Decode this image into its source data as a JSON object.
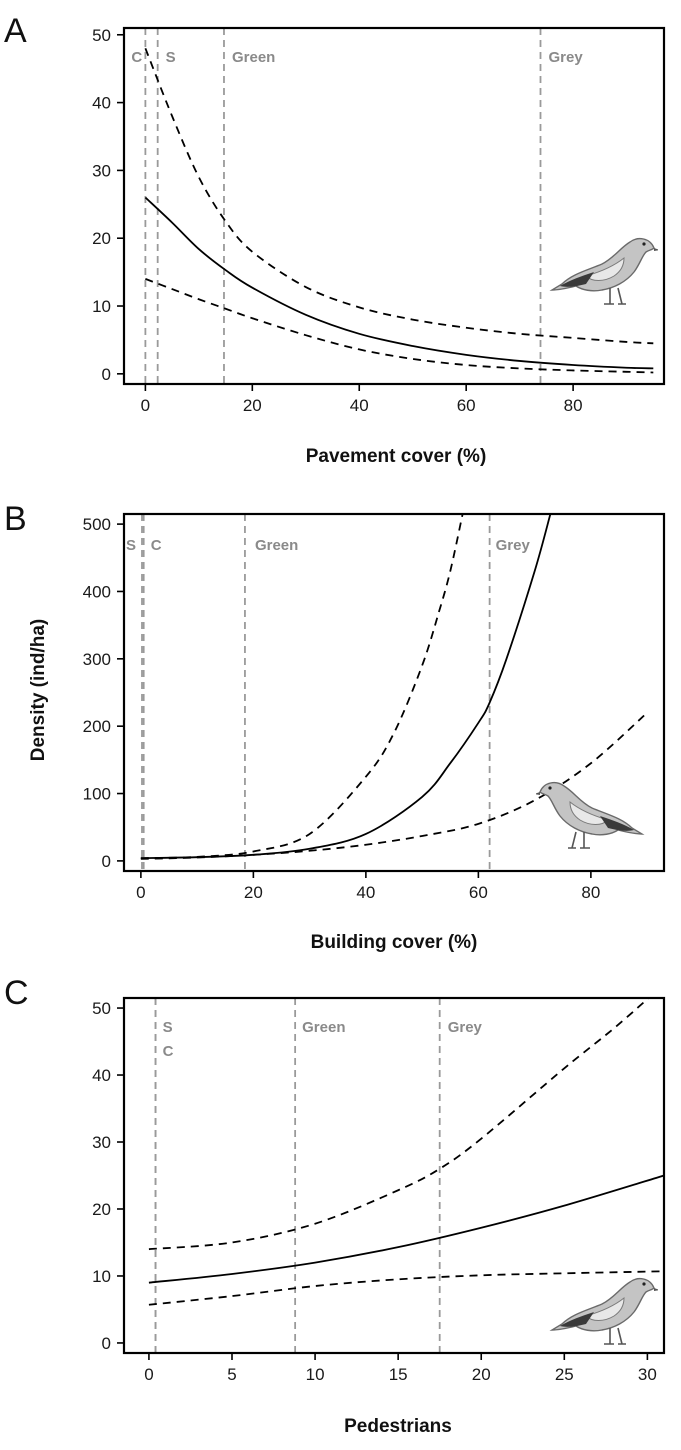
{
  "colors": {
    "curve": "#000000",
    "reference": "#9a9a9a",
    "reference_text": "#8a8a8a",
    "bird_body": "#bdbdbd"
  },
  "icons": [
    "bird-icon"
  ],
  "chart_data": [
    {
      "type": "line",
      "panel": "A",
      "xlabel": "Pavement cover (%)",
      "ylabel": "",
      "xlim": [
        -4,
        97
      ],
      "ylim": [
        -1.5,
        51
      ],
      "xticks": [
        0,
        20,
        40,
        60,
        80
      ],
      "yticks": [
        0,
        10,
        20,
        30,
        40,
        50
      ],
      "series": [
        {
          "style": "solid",
          "x": [
            0,
            5,
            10,
            15,
            20,
            30,
            40,
            50,
            60,
            70,
            80,
            90,
            95
          ],
          "y": [
            26,
            22.3,
            18.4,
            15.3,
            12.7,
            8.7,
            5.9,
            4.1,
            2.8,
            1.9,
            1.3,
            0.9,
            0.8
          ]
        },
        {
          "style": "dashed",
          "x": [
            0,
            5,
            10,
            15,
            20,
            30,
            40,
            50,
            60,
            70,
            80,
            90,
            95
          ],
          "y": [
            48,
            38,
            29,
            22.5,
            18,
            12.8,
            9.8,
            8,
            6.8,
            5.9,
            5.3,
            4.7,
            4.5
          ]
        },
        {
          "style": "dashed",
          "x": [
            0,
            5,
            10,
            15,
            20,
            30,
            40,
            50,
            60,
            70,
            80,
            90,
            95
          ],
          "y": [
            14,
            12.5,
            11,
            9.6,
            8.2,
            5.7,
            3.6,
            2.2,
            1.3,
            0.8,
            0.5,
            0.3,
            0.2
          ]
        }
      ],
      "reference_lines": [
        {
          "x": 0,
          "label": "C"
        },
        {
          "x": 2.3,
          "label": "S"
        },
        {
          "x": 14.7,
          "label": "Green"
        },
        {
          "x": 73.9,
          "label": "Grey"
        }
      ]
    },
    {
      "type": "line",
      "panel": "B",
      "xlabel": "Building cover (%)",
      "ylabel": "Density (ind/ha)",
      "xlim": [
        -3,
        93
      ],
      "ylim": [
        -15,
        515
      ],
      "xticks": [
        0,
        20,
        40,
        60,
        80
      ],
      "yticks": [
        0,
        100,
        200,
        300,
        400,
        500
      ],
      "series": [
        {
          "style": "solid",
          "x": [
            0,
            10,
            20,
            30,
            40,
            50,
            55,
            60,
            62,
            65,
            70,
            72.8
          ],
          "y": [
            4,
            5.5,
            9,
            18,
            40,
            95,
            145,
            205,
            235,
            300,
            430,
            515
          ]
        },
        {
          "style": "dashed",
          "x": [
            0,
            10,
            20,
            30,
            40,
            45,
            50,
            53,
            55,
            57.2
          ],
          "y": [
            4,
            6,
            14,
            40,
            125,
            190,
            290,
            370,
            430,
            515
          ]
        },
        {
          "style": "dashed",
          "x": [
            0,
            10,
            20,
            30,
            40,
            50,
            60,
            70,
            80,
            90
          ],
          "y": [
            3,
            5,
            9,
            15,
            24,
            37,
            55,
            90,
            145,
            220
          ]
        }
      ],
      "reference_lines": [
        {
          "x": 0.2,
          "label": "S"
        },
        {
          "x": 0.5,
          "label": "C"
        },
        {
          "x": 18.5,
          "label": "Green"
        },
        {
          "x": 62,
          "label": "Grey"
        }
      ]
    },
    {
      "type": "line",
      "panel": "C",
      "xlabel": "Pedestrians",
      "ylabel": "",
      "xlim": [
        -1.5,
        31
      ],
      "ylim": [
        -1.5,
        51.5
      ],
      "xticks": [
        0,
        5,
        10,
        15,
        20,
        25,
        30
      ],
      "yticks": [
        0,
        10,
        20,
        30,
        40,
        50
      ],
      "series": [
        {
          "style": "solid",
          "x": [
            0,
            5,
            10,
            15,
            20,
            25,
            31
          ],
          "y": [
            9,
            10.3,
            12,
            14.3,
            17.2,
            20.5,
            25
          ]
        },
        {
          "style": "dashed",
          "x": [
            0,
            5,
            10,
            15,
            17.5,
            20,
            25,
            28,
            30.3
          ],
          "y": [
            14,
            15,
            17.8,
            22.8,
            26,
            30.5,
            41,
            47,
            52
          ]
        },
        {
          "style": "dashed",
          "x": [
            0,
            5,
            10,
            15,
            20,
            25,
            31
          ],
          "y": [
            5.7,
            7,
            8.5,
            9.5,
            10.1,
            10.4,
            10.7
          ]
        }
      ],
      "reference_lines": [
        {
          "x": 0.4,
          "label": "S"
        },
        {
          "x": 0.4,
          "label": "C"
        },
        {
          "x": 8.8,
          "label": "Green"
        },
        {
          "x": 17.5,
          "label": "Grey"
        }
      ]
    }
  ],
  "panels": [
    {
      "letter": "A",
      "xlabel": "Pavement cover (%)"
    },
    {
      "letter": "B",
      "xlabel": "Building cover (%)",
      "ylabel": "Density (ind/ha)"
    },
    {
      "letter": "C",
      "xlabel": "Pedestrians"
    }
  ]
}
